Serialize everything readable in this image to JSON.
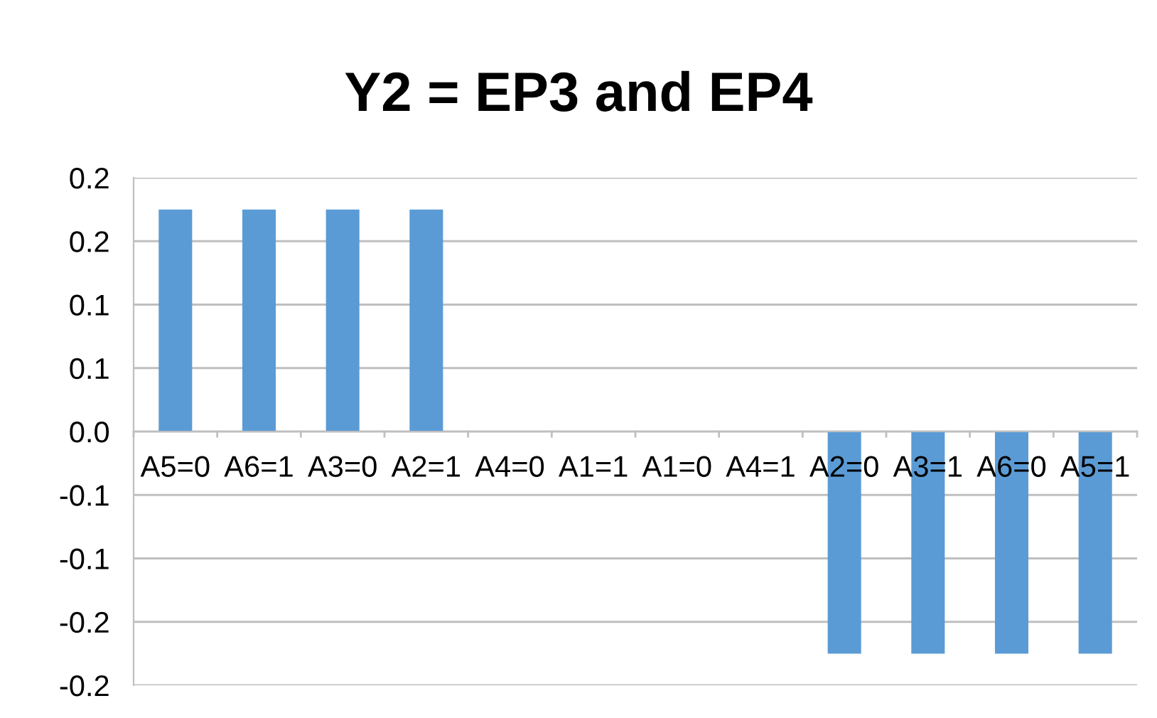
{
  "chart_data": {
    "type": "bar",
    "title": "Y2 = EP3 and EP4",
    "categories": [
      "A5=0",
      "A6=1",
      "A3=0",
      "A2=1",
      "A4=0",
      "A1=1",
      "A1=0",
      "A4=1",
      "A2=0",
      "A3=1",
      "A6=0",
      "A5=1"
    ],
    "values": [
      0.175,
      0.175,
      0.175,
      0.175,
      0,
      0,
      0,
      0,
      -0.175,
      -0.175,
      -0.175,
      -0.175
    ],
    "color": "#5b9bd5",
    "ylim": [
      -0.2,
      0.2
    ],
    "yticks": [
      {
        "value": 0.2,
        "label": "0.2"
      },
      {
        "value": 0.15,
        "label": "0.2"
      },
      {
        "value": 0.1,
        "label": "0.1"
      },
      {
        "value": 0.05,
        "label": "0.1"
      },
      {
        "value": 0,
        "label": "0.0"
      },
      {
        "value": -0.05,
        "label": "-0.1"
      },
      {
        "value": -0.1,
        "label": "-0.1"
      },
      {
        "value": -0.15,
        "label": "-0.2"
      },
      {
        "value": -0.2,
        "label": "-0.2"
      }
    ],
    "grid": "y",
    "legend": false
  }
}
